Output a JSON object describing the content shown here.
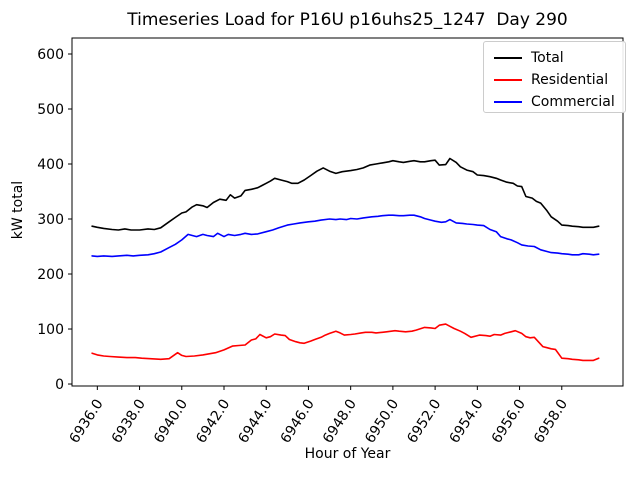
{
  "chart_data": {
    "type": "line",
    "title": "Timeseries Load for P16U p16uhs25_1247  Day 290",
    "xlabel": "Hour of Year",
    "ylabel": "kW total",
    "xlim": [
      6934.8,
      6960.9
    ],
    "ylim": [
      -3.6,
      629.1
    ],
    "grid": false,
    "legend_position": "upper right",
    "xticks": [
      6936,
      6938,
      6940,
      6942,
      6944,
      6946,
      6948,
      6950,
      6952,
      6954,
      6956,
      6958
    ],
    "xtick_labels": [
      "6936.0",
      "6938.0",
      "6940.0",
      "6942.0",
      "6944.0",
      "6946.0",
      "6948.0",
      "6950.0",
      "6952.0",
      "6954.0",
      "6956.0",
      "6958.0"
    ],
    "yticks": [
      0,
      100,
      200,
      300,
      400,
      500,
      600
    ],
    "ytick_labels": [
      "0",
      "100",
      "200",
      "300",
      "400",
      "500",
      "600"
    ],
    "series": [
      {
        "name": "Total",
        "color": "#000000",
        "points": [
          [
            6935.75,
            287
          ],
          [
            6936,
            285
          ],
          [
            6936.3,
            283
          ],
          [
            6936.7,
            281
          ],
          [
            6937,
            280
          ],
          [
            6937.3,
            282
          ],
          [
            6937.6,
            280
          ],
          [
            6938,
            280
          ],
          [
            6938.4,
            282
          ],
          [
            6938.7,
            281
          ],
          [
            6939,
            284
          ],
          [
            6939.4,
            295
          ],
          [
            6939.7,
            303
          ],
          [
            6940,
            311
          ],
          [
            6940.2,
            313
          ],
          [
            6940.5,
            322
          ],
          [
            6940.7,
            326
          ],
          [
            6941,
            324
          ],
          [
            6941.2,
            321
          ],
          [
            6941.5,
            330
          ],
          [
            6941.8,
            336
          ],
          [
            6942.1,
            334
          ],
          [
            6942.3,
            344
          ],
          [
            6942.5,
            338
          ],
          [
            6942.8,
            342
          ],
          [
            6943,
            352
          ],
          [
            6943.3,
            354
          ],
          [
            6943.6,
            357
          ],
          [
            6943.8,
            361
          ],
          [
            6944,
            365
          ],
          [
            6944.2,
            369
          ],
          [
            6944.4,
            374
          ],
          [
            6944.7,
            371
          ],
          [
            6945,
            368
          ],
          [
            6945.2,
            365
          ],
          [
            6945.5,
            365
          ],
          [
            6945.8,
            371
          ],
          [
            6946.1,
            379
          ],
          [
            6946.4,
            387
          ],
          [
            6946.7,
            393
          ],
          [
            6947,
            387
          ],
          [
            6947.3,
            383
          ],
          [
            6947.6,
            386
          ],
          [
            6948,
            388
          ],
          [
            6948.3,
            390
          ],
          [
            6948.6,
            393
          ],
          [
            6948.9,
            398
          ],
          [
            6949.2,
            400
          ],
          [
            6949.5,
            402
          ],
          [
            6949.8,
            404
          ],
          [
            6950,
            406
          ],
          [
            6950.3,
            404
          ],
          [
            6950.5,
            403
          ],
          [
            6950.8,
            405
          ],
          [
            6951,
            406
          ],
          [
            6951.3,
            404
          ],
          [
            6951.5,
            404
          ],
          [
            6951.8,
            406
          ],
          [
            6952,
            407
          ],
          [
            6952.2,
            398
          ],
          [
            6952.5,
            399
          ],
          [
            6952.7,
            410
          ],
          [
            6953,
            403
          ],
          [
            6953.2,
            395
          ],
          [
            6953.5,
            389
          ],
          [
            6953.8,
            386
          ],
          [
            6954,
            380
          ],
          [
            6954.3,
            379
          ],
          [
            6954.6,
            377
          ],
          [
            6954.9,
            374
          ],
          [
            6955.1,
            371
          ],
          [
            6955.4,
            367
          ],
          [
            6955.7,
            365
          ],
          [
            6955.9,
            360
          ],
          [
            6956.1,
            359
          ],
          [
            6956.3,
            341
          ],
          [
            6956.6,
            338
          ],
          [
            6956.8,
            332
          ],
          [
            6957,
            329
          ],
          [
            6957.3,
            315
          ],
          [
            6957.5,
            304
          ],
          [
            6957.8,
            296
          ],
          [
            6958,
            289
          ],
          [
            6958.3,
            288
          ],
          [
            6958.5,
            287
          ],
          [
            6958.8,
            286
          ],
          [
            6959,
            285
          ],
          [
            6959.3,
            285
          ],
          [
            6959.5,
            285
          ],
          [
            6959.75,
            287
          ]
        ]
      },
      {
        "name": "Residential",
        "color": "#ff0000",
        "points": [
          [
            6935.75,
            56
          ],
          [
            6936,
            53
          ],
          [
            6936.3,
            51
          ],
          [
            6936.6,
            50
          ],
          [
            6937,
            49
          ],
          [
            6937.4,
            48
          ],
          [
            6937.8,
            48
          ],
          [
            6938.1,
            47
          ],
          [
            6938.5,
            46
          ],
          [
            6939,
            45
          ],
          [
            6939.4,
            46
          ],
          [
            6939.8,
            57
          ],
          [
            6940,
            52
          ],
          [
            6940.2,
            50
          ],
          [
            6940.6,
            51
          ],
          [
            6941,
            53
          ],
          [
            6941.3,
            55
          ],
          [
            6941.6,
            57
          ],
          [
            6942,
            62
          ],
          [
            6942.4,
            69
          ],
          [
            6942.7,
            70
          ],
          [
            6943,
            71
          ],
          [
            6943.3,
            80
          ],
          [
            6943.5,
            82
          ],
          [
            6943.7,
            90
          ],
          [
            6944,
            84
          ],
          [
            6944.2,
            86
          ],
          [
            6944.4,
            91
          ],
          [
            6944.7,
            89
          ],
          [
            6944.9,
            88
          ],
          [
            6945.1,
            81
          ],
          [
            6945.4,
            77
          ],
          [
            6945.6,
            75
          ],
          [
            6945.8,
            74
          ],
          [
            6946.1,
            78
          ],
          [
            6946.3,
            81
          ],
          [
            6946.6,
            85
          ],
          [
            6946.8,
            89
          ],
          [
            6947,
            92
          ],
          [
            6947.3,
            96
          ],
          [
            6947.5,
            93
          ],
          [
            6947.7,
            89
          ],
          [
            6948,
            90
          ],
          [
            6948.2,
            91
          ],
          [
            6948.5,
            93
          ],
          [
            6948.7,
            94
          ],
          [
            6949,
            94
          ],
          [
            6949.2,
            93
          ],
          [
            6949.5,
            94
          ],
          [
            6949.7,
            95
          ],
          [
            6950.1,
            97
          ],
          [
            6950.3,
            96
          ],
          [
            6950.6,
            95
          ],
          [
            6950.9,
            96
          ],
          [
            6951.1,
            98
          ],
          [
            6951.5,
            103
          ],
          [
            6951.8,
            102
          ],
          [
            6952,
            101
          ],
          [
            6952.2,
            107
          ],
          [
            6952.5,
            109
          ],
          [
            6952.7,
            105
          ],
          [
            6952.9,
            101
          ],
          [
            6953.2,
            96
          ],
          [
            6953.4,
            92
          ],
          [
            6953.7,
            85
          ],
          [
            6954.1,
            89
          ],
          [
            6954.4,
            88
          ],
          [
            6954.6,
            87
          ],
          [
            6954.8,
            90
          ],
          [
            6955.1,
            89
          ],
          [
            6955.3,
            92
          ],
          [
            6955.6,
            95
          ],
          [
            6955.8,
            97
          ],
          [
            6956.1,
            92
          ],
          [
            6956.3,
            86
          ],
          [
            6956.5,
            84
          ],
          [
            6956.7,
            85
          ],
          [
            6957.1,
            68
          ],
          [
            6957.3,
            66
          ],
          [
            6957.5,
            64
          ],
          [
            6957.7,
            63
          ],
          [
            6958,
            47
          ],
          [
            6958.3,
            46
          ],
          [
            6958.5,
            45
          ],
          [
            6958.8,
            44
          ],
          [
            6959,
            43
          ],
          [
            6959.3,
            43
          ],
          [
            6959.5,
            43
          ],
          [
            6959.75,
            47
          ]
        ]
      },
      {
        "name": "Commercial",
        "color": "#0000ff",
        "points": [
          [
            6935.75,
            233
          ],
          [
            6936,
            232
          ],
          [
            6936.3,
            233
          ],
          [
            6936.7,
            232
          ],
          [
            6937,
            233
          ],
          [
            6937.4,
            234
          ],
          [
            6937.7,
            233
          ],
          [
            6938,
            234
          ],
          [
            6938.4,
            235
          ],
          [
            6938.7,
            237
          ],
          [
            6939,
            240
          ],
          [
            6939.4,
            248
          ],
          [
            6939.7,
            254
          ],
          [
            6940,
            262
          ],
          [
            6940.3,
            272
          ],
          [
            6940.5,
            270
          ],
          [
            6940.7,
            268
          ],
          [
            6941,
            272
          ],
          [
            6941.2,
            270
          ],
          [
            6941.5,
            268
          ],
          [
            6941.7,
            274
          ],
          [
            6942,
            268
          ],
          [
            6942.2,
            272
          ],
          [
            6942.5,
            270
          ],
          [
            6942.8,
            272
          ],
          [
            6943,
            274
          ],
          [
            6943.3,
            272
          ],
          [
            6943.6,
            273
          ],
          [
            6944,
            277
          ],
          [
            6944.3,
            280
          ],
          [
            6944.6,
            284
          ],
          [
            6945,
            289
          ],
          [
            6945.3,
            291
          ],
          [
            6945.6,
            293
          ],
          [
            6946,
            295
          ],
          [
            6946.3,
            296
          ],
          [
            6946.6,
            298
          ],
          [
            6947,
            300
          ],
          [
            6947.3,
            299
          ],
          [
            6947.5,
            300
          ],
          [
            6947.8,
            299
          ],
          [
            6948,
            301
          ],
          [
            6948.3,
            300
          ],
          [
            6948.6,
            302
          ],
          [
            6949,
            304
          ],
          [
            6949.3,
            305
          ],
          [
            6949.5,
            306
          ],
          [
            6949.8,
            307
          ],
          [
            6950,
            307
          ],
          [
            6950.3,
            306
          ],
          [
            6950.5,
            306
          ],
          [
            6950.8,
            307
          ],
          [
            6951,
            307
          ],
          [
            6951.3,
            304
          ],
          [
            6951.5,
            301
          ],
          [
            6951.8,
            298
          ],
          [
            6952,
            296
          ],
          [
            6952.3,
            294
          ],
          [
            6952.5,
            295
          ],
          [
            6952.7,
            299
          ],
          [
            6953,
            293
          ],
          [
            6953.3,
            292
          ],
          [
            6953.5,
            291
          ],
          [
            6953.8,
            290
          ],
          [
            6954,
            289
          ],
          [
            6954.3,
            288
          ],
          [
            6954.6,
            281
          ],
          [
            6954.9,
            277
          ],
          [
            6955.1,
            268
          ],
          [
            6955.4,
            264
          ],
          [
            6955.6,
            262
          ],
          [
            6955.9,
            257
          ],
          [
            6956.1,
            253
          ],
          [
            6956.4,
            251
          ],
          [
            6956.7,
            250
          ],
          [
            6957,
            244
          ],
          [
            6957.3,
            241
          ],
          [
            6957.5,
            239
          ],
          [
            6957.8,
            238
          ],
          [
            6958,
            237
          ],
          [
            6958.3,
            236
          ],
          [
            6958.5,
            235
          ],
          [
            6958.8,
            235
          ],
          [
            6959,
            237
          ],
          [
            6959.3,
            236
          ],
          [
            6959.5,
            235
          ],
          [
            6959.75,
            236
          ]
        ]
      }
    ]
  }
}
